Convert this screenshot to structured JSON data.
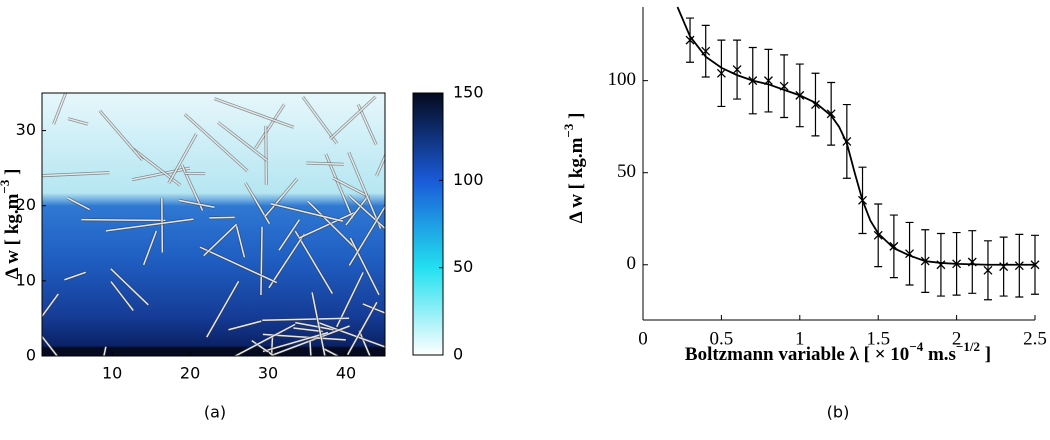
{
  "chart_data": [
    {
      "type": "image",
      "ylabel": [
        "Δ w [ kg.m",
        "−3",
        " ]"
      ],
      "xlim": [
        1,
        45
      ],
      "xticks": [
        10,
        20,
        30,
        40
      ],
      "ylim": [
        0,
        35
      ],
      "yticks": [
        0,
        10,
        20,
        30
      ],
      "colorbar": {
        "lim": [
          0,
          150
        ],
        "ticks": [
          0,
          50,
          100,
          150
        ],
        "colors": [
          "#ffffff",
          "#22e0f0",
          "#1a5ad8",
          "#050a1e"
        ]
      },
      "caption": "(a)"
    },
    {
      "type": "line",
      "xlabel": [
        "Boltzmann variable λ [ × 10",
        "−4",
        " m.s",
        "−1/2",
        " ]"
      ],
      "ylabel": [
        "Δ w [ kg.m",
        "−3",
        " ]"
      ],
      "xlim": [
        0,
        2.5
      ],
      "xticks": [
        0,
        0.5,
        1,
        1.5,
        2,
        2.5
      ],
      "ylim": [
        -30,
        140
      ],
      "yticks": [
        0,
        50,
        100
      ],
      "color": "#000000",
      "series": [
        {
          "style": "errorbar",
          "x": [
            0.3,
            0.4,
            0.5,
            0.6,
            0.7,
            0.8,
            0.9,
            1.0,
            1.1,
            1.2,
            1.3,
            1.4,
            1.5,
            1.6,
            1.7,
            1.8,
            1.9,
            2.0,
            2.1,
            2.2,
            2.3,
            2.4,
            2.5
          ],
          "values": [
            122,
            116,
            104,
            106,
            100,
            100,
            97,
            92,
            87,
            82,
            67,
            35,
            16,
            10,
            6,
            2,
            0,
            0.5,
            1.5,
            -3,
            -1,
            -0.5,
            0
          ],
          "errors": [
            12,
            14,
            18,
            16,
            18,
            17,
            17,
            17,
            17,
            17,
            20,
            18,
            17,
            17,
            17,
            17,
            17,
            17,
            17,
            16,
            16,
            17,
            16
          ]
        },
        {
          "style": "line",
          "x": [
            0.22,
            0.3,
            0.4,
            0.5,
            0.6,
            0.7,
            0.8,
            0.9,
            1.0,
            1.1,
            1.2,
            1.25,
            1.3,
            1.35,
            1.4,
            1.45,
            1.5,
            1.6,
            1.7,
            1.8,
            1.9,
            2.0,
            2.2,
            2.5
          ],
          "values": [
            140,
            124,
            113,
            107,
            103,
            100,
            98,
            95,
            92,
            88,
            81,
            75,
            66,
            50,
            35,
            24,
            17,
            9,
            5,
            2,
            1,
            0.5,
            0,
            0
          ]
        }
      ],
      "caption": "(b)"
    }
  ]
}
